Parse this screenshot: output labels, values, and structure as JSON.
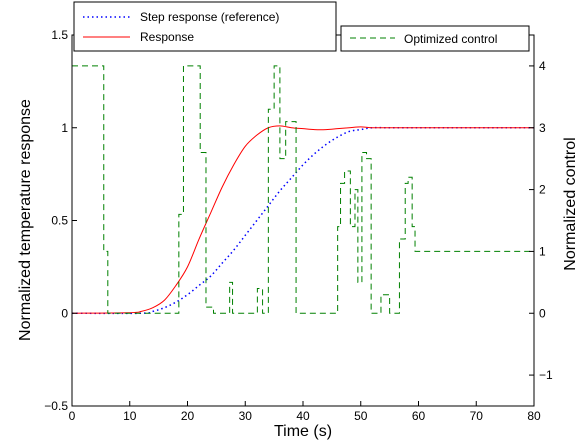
{
  "chart_data": {
    "type": "line",
    "title": "",
    "xlabel": "Time (s)",
    "ylabel_left": "Normalized temperature response",
    "ylabel_right": "Normalized control",
    "xlim": [
      0,
      80
    ],
    "ylim_left": [
      -0.5,
      1.5
    ],
    "ylim_right": [
      -1.5,
      4.5
    ],
    "x_ticks": [
      0,
      10,
      20,
      30,
      40,
      50,
      60,
      70,
      80
    ],
    "y_ticks_left": [
      -0.5,
      0,
      0.5,
      1,
      1.5
    ],
    "y_ticks_right": [
      -1,
      0,
      1,
      2,
      3,
      4
    ],
    "x_tick_labels": [
      "0",
      "10",
      "20",
      "30",
      "40",
      "50",
      "60",
      "70",
      "80"
    ],
    "y_tick_labels_left": [
      "−0.5",
      "0",
      "0.5",
      "1",
      "1.5"
    ],
    "y_tick_labels_right": [
      "−1",
      "0",
      "1",
      "2",
      "3",
      "4"
    ],
    "grid": false,
    "legend_left": [
      "Step response (reference)",
      "Response"
    ],
    "legend_right": [
      "Optimized control"
    ],
    "series": [
      {
        "name": "Step response (reference)",
        "axis": "left",
        "color": "#0000ff",
        "style": "dotted",
        "x": [
          0,
          12,
          14,
          16,
          18,
          20,
          22,
          24,
          26,
          28,
          30,
          32,
          34,
          36,
          38,
          40,
          42,
          44,
          46,
          48,
          50,
          52,
          55,
          60,
          65,
          70,
          75,
          80
        ],
        "y": [
          0,
          0,
          0.01,
          0.03,
          0.06,
          0.1,
          0.15,
          0.2,
          0.27,
          0.34,
          0.42,
          0.5,
          0.58,
          0.66,
          0.73,
          0.8,
          0.86,
          0.91,
          0.95,
          0.98,
          0.99,
          1.0,
          1.0,
          1.0,
          1.0,
          1.0,
          1.0,
          1.0
        ]
      },
      {
        "name": "Response",
        "axis": "left",
        "color": "#ff0000",
        "style": "solid",
        "x": [
          0,
          10,
          12,
          14,
          16,
          18,
          20,
          22,
          24,
          26,
          28,
          30,
          32,
          34,
          36,
          38,
          40,
          42,
          44,
          46,
          48,
          50,
          52,
          55,
          60,
          65,
          70,
          75,
          80
        ],
        "y": [
          0,
          0.003,
          0.01,
          0.03,
          0.07,
          0.15,
          0.25,
          0.4,
          0.54,
          0.68,
          0.8,
          0.9,
          0.96,
          1.0,
          1.01,
          1.0,
          0.995,
          0.99,
          0.99,
          0.995,
          1.0,
          1.005,
          1.0,
          1.0,
          1.0,
          1.0,
          1.0,
          1.0,
          1.0
        ]
      },
      {
        "name": "Optimized control",
        "axis": "right",
        "color": "#008000",
        "style": "dashed",
        "step": true,
        "x": [
          0,
          4.8,
          5.5,
          6.2,
          17.8,
          18.5,
          19.3,
          22.2,
          23.2,
          24.5,
          26.8,
          27.3,
          27.8,
          31.5,
          32.1,
          33.0,
          34.0,
          35.0,
          36.0,
          37.0,
          38.8,
          45.5,
          46.0,
          46.5,
          47.2,
          48.2,
          49.0,
          49.5,
          50.2,
          51.0,
          51.8,
          53.0,
          53.5,
          55.0,
          56.7,
          57.7,
          58.2,
          58.9,
          59.4,
          80
        ],
        "y": [
          4,
          4,
          1,
          0,
          0,
          1.6,
          4,
          2.6,
          0.1,
          0,
          0,
          0.5,
          0,
          0,
          0.4,
          0,
          3.3,
          4,
          2.5,
          3.1,
          0,
          0,
          1.4,
          2.1,
          2.3,
          1.4,
          2.0,
          0.5,
          2.6,
          2.5,
          0,
          0,
          0.3,
          0,
          1.2,
          2.1,
          2.2,
          1.4,
          1.0,
          1.0
        ]
      }
    ]
  }
}
